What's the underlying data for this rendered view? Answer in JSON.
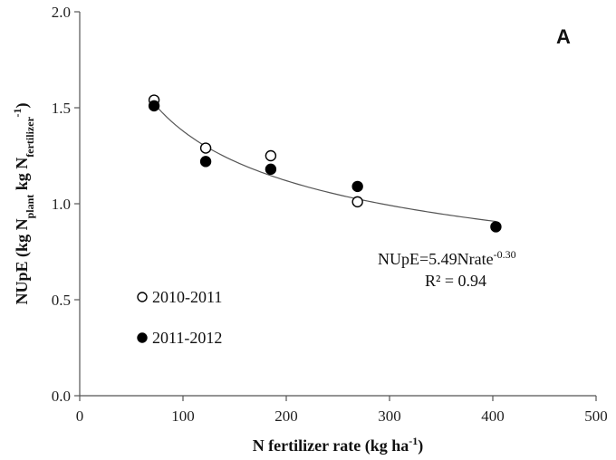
{
  "chart_data": {
    "type": "scatter",
    "panel_label": "A",
    "xlabel": {
      "text": "N fertilizer  rate (kg ha",
      "sup": "-1",
      "tail": ")"
    },
    "ylabel": {
      "parts": [
        {
          "t": "NUpE (kg N"
        },
        {
          "t": "plant",
          "sub": true
        },
        {
          "t": " kg N"
        },
        {
          "t": "fertilizer",
          "sub": true
        },
        {
          "t": "-1",
          "sup": true
        },
        {
          "t": ")"
        }
      ]
    },
    "xlim": [
      0,
      500
    ],
    "ylim": [
      0.0,
      2.0
    ],
    "x_ticks": [
      0,
      100,
      200,
      300,
      400,
      500
    ],
    "x_tick_labels": [
      "0",
      "100",
      "200",
      "300",
      "400",
      "500"
    ],
    "y_ticks": [
      0.0,
      0.5,
      1.0,
      1.5,
      2.0
    ],
    "y_tick_labels": [
      "0.0",
      "0.5",
      "1.0",
      "1.5",
      "2.0"
    ],
    "grid": false,
    "legend_placement": "bottom-left",
    "series": [
      {
        "name": "2010-2011",
        "marker": "open-circle",
        "color": "#000000",
        "points": [
          {
            "x": 72,
            "y": 1.54
          },
          {
            "x": 122,
            "y": 1.29
          },
          {
            "x": 185,
            "y": 1.25
          },
          {
            "x": 269,
            "y": 1.01
          }
        ]
      },
      {
        "name": "2011-2012",
        "marker": "filled-circle",
        "color": "#000000",
        "points": [
          {
            "x": 72,
            "y": 1.51
          },
          {
            "x": 122,
            "y": 1.22
          },
          {
            "x": 185,
            "y": 1.18
          },
          {
            "x": 269,
            "y": 1.09
          },
          {
            "x": 403,
            "y": 0.88
          }
        ]
      }
    ],
    "fit": {
      "a": 5.49,
      "b": -0.3,
      "x_range": [
        72,
        403
      ],
      "color": "#555555"
    },
    "equation": {
      "base": "NUpE=5.49Nrate",
      "exp": "-0.30",
      "r2": "R² = 0.94"
    }
  }
}
